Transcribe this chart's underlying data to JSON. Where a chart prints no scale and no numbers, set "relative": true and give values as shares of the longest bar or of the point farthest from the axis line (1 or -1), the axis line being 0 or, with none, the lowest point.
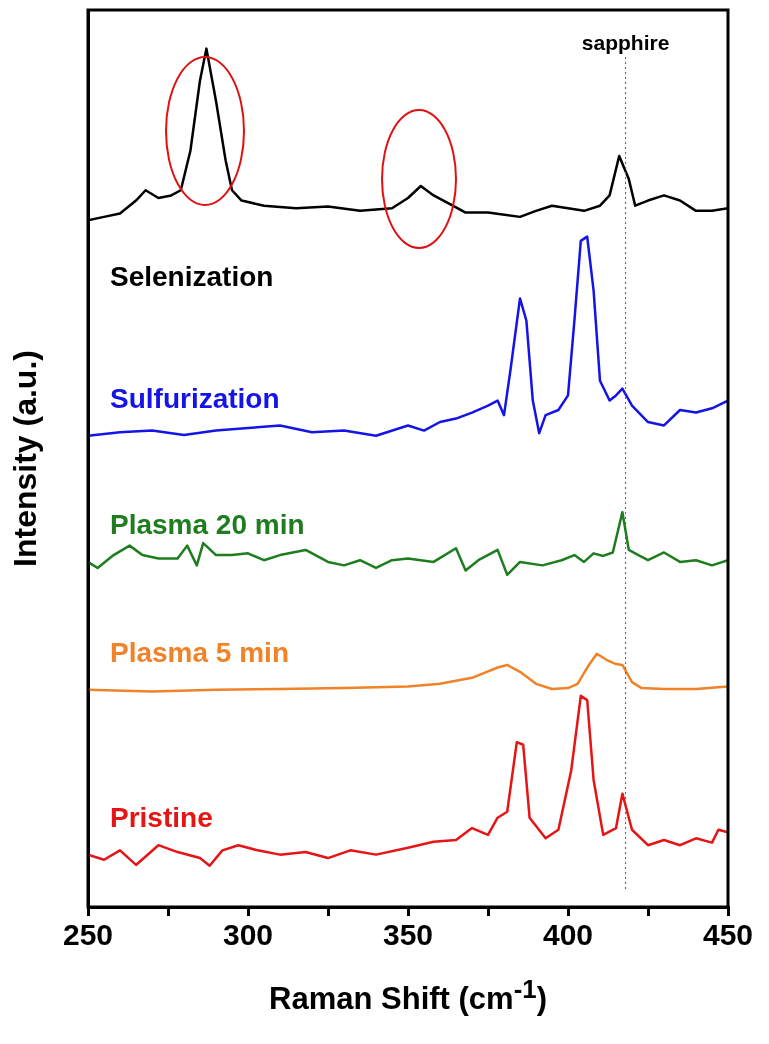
{
  "chart_data": {
    "type": "line",
    "relative": true,
    "xlabel": "Raman Shift (cm$^{-1}$)",
    "ylabel": "Intensity (a.u.)",
    "xlim": [
      250,
      450
    ],
    "xticks": [
      250,
      {
        "value": 275,
        "label": null
      },
      300,
      {
        "value": 325,
        "label": null
      },
      350,
      {
        "value": 375,
        "label": null
      },
      400,
      {
        "value": 425,
        "label": null
      },
      450
    ],
    "legend": false,
    "grid": false,
    "ref_lines": [
      {
        "axis": "x",
        "value": 418,
        "label": "sapphire",
        "color": "#555555",
        "line_style": "dotted"
      }
    ],
    "series": [
      {
        "name": "Selenization",
        "color": "#000000",
        "x": [
          250,
          255,
          260,
          265,
          268,
          272,
          276,
          279,
          282,
          285,
          287,
          290,
          293,
          295,
          298,
          305,
          315,
          325,
          335,
          345,
          350,
          354,
          358,
          364,
          368,
          375,
          385,
          390,
          395,
          405,
          410,
          413,
          416,
          419,
          421,
          425,
          430,
          435,
          440,
          445,
          450
        ],
        "values": [
          0.8,
          0.804,
          0.808,
          0.823,
          0.835,
          0.826,
          0.829,
          0.835,
          0.881,
          0.963,
          1,
          0.939,
          0.87,
          0.835,
          0.823,
          0.817,
          0.814,
          0.816,
          0.811,
          0.814,
          0.826,
          0.84,
          0.829,
          0.817,
          0.809,
          0.809,
          0.804,
          0.811,
          0.817,
          0.811,
          0.817,
          0.829,
          0.875,
          0.848,
          0.817,
          0.823,
          0.829,
          0.823,
          0.811,
          0.811,
          0.814
        ]
      },
      {
        "name": "Sulfurization",
        "color": "#1414e6",
        "x": [
          250,
          260,
          270,
          280,
          290,
          300,
          310,
          320,
          330,
          340,
          350,
          355,
          360,
          365,
          370,
          375,
          378,
          380,
          382,
          385,
          387,
          389,
          391,
          393,
          397,
          400,
          402,
          404,
          406,
          408,
          410,
          413,
          415,
          417,
          420,
          425,
          430,
          435,
          440,
          445,
          450
        ],
        "values": [
          0.549,
          0.553,
          0.555,
          0.55,
          0.555,
          0.558,
          0.561,
          0.553,
          0.555,
          0.549,
          0.561,
          0.555,
          0.565,
          0.569,
          0.576,
          0.584,
          0.59,
          0.573,
          0.625,
          0.709,
          0.683,
          0.59,
          0.552,
          0.573,
          0.579,
          0.596,
          0.683,
          0.776,
          0.781,
          0.718,
          0.613,
          0.59,
          0.596,
          0.604,
          0.584,
          0.565,
          0.561,
          0.579,
          0.576,
          0.581,
          0.59
        ]
      },
      {
        "name": "Plasma 20 min",
        "color": "#1e7d1e",
        "x": [
          250,
          253,
          258,
          263,
          267,
          272,
          278,
          281,
          284,
          286,
          290,
          295,
          300,
          305,
          310,
          318,
          325,
          330,
          335,
          340,
          345,
          350,
          358,
          365,
          368,
          372,
          378,
          381,
          385,
          392,
          398,
          402,
          405,
          408,
          411,
          414,
          417,
          419,
          422,
          425,
          430,
          435,
          440,
          445,
          450
        ],
        "values": [
          0.402,
          0.395,
          0.41,
          0.421,
          0.41,
          0.406,
          0.406,
          0.421,
          0.398,
          0.424,
          0.41,
          0.41,
          0.412,
          0.404,
          0.41,
          0.416,
          0.402,
          0.398,
          0.404,
          0.395,
          0.404,
          0.406,
          0.402,
          0.418,
          0.392,
          0.404,
          0.416,
          0.387,
          0.402,
          0.398,
          0.404,
          0.41,
          0.402,
          0.412,
          0.409,
          0.413,
          0.46,
          0.416,
          0.41,
          0.404,
          0.413,
          0.402,
          0.404,
          0.398,
          0.404
        ]
      },
      {
        "name": "Plasma 5 min",
        "color": "#f08228",
        "x": [
          250,
          270,
          290,
          310,
          330,
          350,
          360,
          370,
          378,
          381,
          385,
          390,
          395,
          400,
          403,
          406,
          409,
          412,
          415,
          417,
          420,
          423,
          430,
          440,
          450
        ],
        "values": [
          0.253,
          0.251,
          0.253,
          0.254,
          0.255,
          0.257,
          0.26,
          0.267,
          0.279,
          0.282,
          0.274,
          0.26,
          0.254,
          0.255,
          0.26,
          0.279,
          0.295,
          0.288,
          0.283,
          0.282,
          0.262,
          0.255,
          0.254,
          0.254,
          0.257
        ]
      },
      {
        "name": "Pristine",
        "color": "#e61414",
        "x": [
          250,
          255,
          260,
          265,
          272,
          278,
          285,
          288,
          292,
          297,
          303,
          310,
          318,
          325,
          332,
          340,
          350,
          358,
          365,
          370,
          375,
          378,
          381,
          384,
          386,
          388,
          393,
          397,
          401,
          404,
          406,
          408,
          411,
          415,
          417,
          420,
          425,
          430,
          435,
          440,
          445,
          447,
          450
        ],
        "values": [
          0.061,
          0.055,
          0.066,
          0.049,
          0.072,
          0.064,
          0.057,
          0.048,
          0.066,
          0.072,
          0.066,
          0.061,
          0.064,
          0.057,
          0.066,
          0.061,
          0.069,
          0.076,
          0.078,
          0.092,
          0.084,
          0.104,
          0.111,
          0.192,
          0.189,
          0.104,
          0.08,
          0.09,
          0.159,
          0.246,
          0.241,
          0.148,
          0.084,
          0.092,
          0.132,
          0.09,
          0.072,
          0.078,
          0.072,
          0.08,
          0.075,
          0.09,
          0.087
        ]
      }
    ]
  }
}
